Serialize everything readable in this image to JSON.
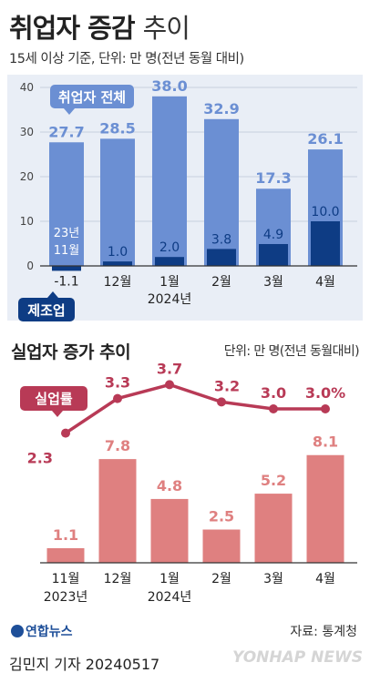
{
  "title_bold": "취업자 증감",
  "title_light": "추이",
  "subtitle": "15세 이상 기준, 단위: 만 명(전년 동월 대비)",
  "section2_title": "실업자 증가 추이",
  "section2_unit": "단위: 만 명(전년 동월대비)",
  "logo": "연합뉴스",
  "source": "자료: 통계청",
  "byline": "김민지 기자  20240517",
  "watermark": "YONHAP NEWS",
  "colors": {
    "total": "#6b8fd3",
    "manufacturing": "#0e3c84",
    "unemployed_bar": "#df8080",
    "unemployment_line": "#b83a56",
    "panel_bg": "#e9eef6",
    "year_label": "#ffffff"
  },
  "chart_data": [
    {
      "type": "bar",
      "categories": [
        "23년 11월",
        "12월",
        "1월 2024년",
        "2월",
        "3월",
        "4월"
      ],
      "x_tick_labels": [
        {
          "line1": "23년",
          "line2": "11월"
        },
        {
          "line1": "12월",
          "line2": ""
        },
        {
          "line1": "1월",
          "line2": "2024년"
        },
        {
          "line1": "2월",
          "line2": ""
        },
        {
          "line1": "3월",
          "line2": ""
        },
        {
          "line1": "4월",
          "line2": ""
        }
      ],
      "yticks": [
        0,
        10,
        20,
        30,
        40
      ],
      "ylim": [
        -7,
        42
      ],
      "grid": true,
      "series": [
        {
          "name": "취업자 전체",
          "values": [
            27.7,
            28.5,
            38.0,
            32.9,
            17.3,
            26.1
          ],
          "labels": [
            "27.7",
            "28.5",
            "38.0",
            "32.9",
            "17.3",
            "26.1"
          ]
        },
        {
          "name": "제조업",
          "values": [
            -1.1,
            1.0,
            2.0,
            3.8,
            4.9,
            10.0
          ],
          "labels": [
            "-1.1",
            "1.0",
            "2.0",
            "3.8",
            "4.9",
            "10.0"
          ]
        }
      ]
    },
    {
      "type": "bar",
      "categories": [
        "11월 2023년",
        "12월",
        "1월 2024년",
        "2월",
        "3월",
        "4월"
      ],
      "x_tick_labels": [
        {
          "line1": "11월",
          "line2": "2023년"
        },
        {
          "line1": "12월",
          "line2": ""
        },
        {
          "line1": "1월",
          "line2": "2024년"
        },
        {
          "line1": "2월",
          "line2": ""
        },
        {
          "line1": "3월",
          "line2": ""
        },
        {
          "line1": "4월",
          "line2": ""
        }
      ],
      "series": [
        {
          "name": "실업자 증가",
          "values": [
            1.1,
            7.8,
            4.8,
            2.5,
            5.2,
            8.1
          ],
          "labels": [
            "1.1",
            "7.8",
            "4.8",
            "2.5",
            "5.2",
            "8.1"
          ]
        }
      ]
    },
    {
      "type": "line",
      "categories": [
        "11월 2023년",
        "12월",
        "1월 2024년",
        "2월",
        "3월",
        "4월"
      ],
      "series": [
        {
          "name": "실업률",
          "values": [
            2.3,
            3.3,
            3.7,
            3.2,
            3.0,
            3.0
          ],
          "labels": [
            "2.3",
            "3.3",
            "3.7",
            "3.2",
            "3.0",
            "3.0%"
          ]
        }
      ]
    }
  ]
}
